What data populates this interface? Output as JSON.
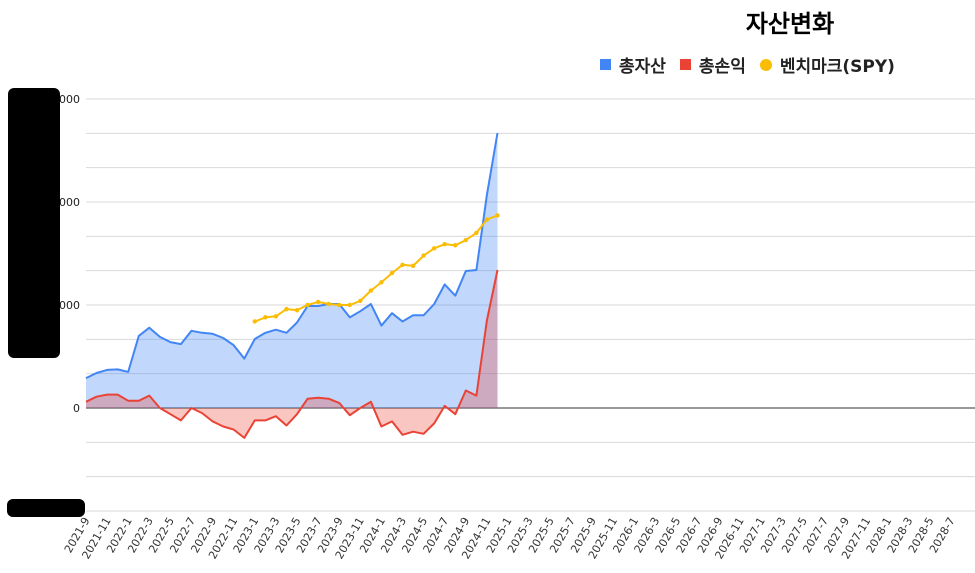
{
  "chart_data": {
    "type": "area",
    "title": "자산변화",
    "xlabel": "",
    "ylabel": "",
    "y_tick_labels": [
      "0",
      "0000",
      "0000",
      "0000"
    ],
    "y_tick_values": [
      0,
      10000,
      20000,
      30000
    ],
    "ylim": [
      -10000,
      30500
    ],
    "legend_position": "top-right",
    "grid": true,
    "x": [
      "2021-9",
      "2021-10",
      "2021-11",
      "2021-12",
      "2022-1",
      "2022-2",
      "2022-3",
      "2022-4",
      "2022-5",
      "2022-6",
      "2022-7",
      "2022-8",
      "2022-9",
      "2022-10",
      "2022-11",
      "2022-12",
      "2023-1",
      "2023-2",
      "2023-3",
      "2023-4",
      "2023-5",
      "2023-6",
      "2023-7",
      "2023-8",
      "2023-9",
      "2023-10",
      "2023-11",
      "2023-12",
      "2024-1",
      "2024-2",
      "2024-3",
      "2024-4",
      "2024-5",
      "2024-6",
      "2024-7",
      "2024-8",
      "2024-9",
      "2024-10",
      "2024-11",
      "2024-12",
      "2025-1",
      "2025-2",
      "2025-3",
      "2025-4",
      "2025-5",
      "2025-6",
      "2025-7",
      "2025-8",
      "2025-9",
      "2025-10",
      "2025-11",
      "2025-12",
      "2026-1",
      "2026-2",
      "2026-3",
      "2026-4",
      "2026-5",
      "2026-6",
      "2026-7",
      "2026-8",
      "2026-9",
      "2026-10",
      "2026-11",
      "2026-12",
      "2027-1",
      "2027-2",
      "2027-3",
      "2027-4",
      "2027-5",
      "2027-6",
      "2027-7",
      "2027-8",
      "2027-9",
      "2027-10",
      "2027-11",
      "2027-12",
      "2028-1",
      "2028-2",
      "2028-3",
      "2028-4",
      "2028-5",
      "2028-6",
      "2028-7"
    ],
    "x_tick_labels": [
      "2021-9",
      "2021-11",
      "2022-1",
      "2022-3",
      "2022-5",
      "2022-7",
      "2022-9",
      "2022-11",
      "2023-1",
      "2023-3",
      "2023-5",
      "2023-7",
      "2023-9",
      "2023-11",
      "2024-1",
      "2024-3",
      "2024-5",
      "2024-7",
      "2024-9",
      "2024-11",
      "2025-1",
      "2025-3",
      "2025-5",
      "2025-7",
      "2025-9",
      "2025-11",
      "2026-1",
      "2026-3",
      "2026-5",
      "2026-7",
      "2026-9",
      "2026-11",
      "2027-1",
      "2027-3",
      "2027-5",
      "2027-7",
      "2027-9",
      "2027-11",
      "2028-1",
      "2028-3",
      "2028-5",
      "2028-7"
    ],
    "series": [
      {
        "name": "총자산",
        "color": "#4285f4",
        "fill": "rgba(66,133,244,0.33)",
        "style": "area",
        "values": [
          2900,
          3400,
          3700,
          3750,
          3500,
          7000,
          7800,
          6900,
          6400,
          6200,
          7500,
          7300,
          7200,
          6800,
          6100,
          4800,
          6700,
          7300,
          7600,
          7300,
          8300,
          9900,
          9900,
          10100,
          10100,
          8800,
          9400,
          10100,
          8000,
          9200,
          8400,
          9000,
          9000,
          10100,
          12000,
          10900,
          13300,
          13400,
          20700,
          26700,
          null,
          null,
          null,
          null,
          null,
          null,
          null,
          null,
          null,
          null,
          null,
          null,
          null,
          null,
          null,
          null,
          null,
          null,
          null,
          null,
          null,
          null,
          null,
          null,
          null,
          null,
          null,
          null,
          null,
          null,
          null,
          null,
          null,
          null,
          null,
          null,
          null,
          null,
          null,
          null,
          null,
          null,
          null
        ]
      },
      {
        "name": "총손익",
        "color": "#ea4335",
        "fill": "rgba(234,67,53,0.30)",
        "style": "area",
        "values": [
          600,
          1100,
          1300,
          1300,
          700,
          700,
          1200,
          0,
          -600,
          -1200,
          0,
          -500,
          -1300,
          -1800,
          -2100,
          -2900,
          -1200,
          -1200,
          -800,
          -1700,
          -600,
          900,
          1000,
          900,
          500,
          -700,
          0,
          600,
          -1800,
          -1300,
          -2600,
          -2300,
          -2500,
          -1500,
          200,
          -600,
          1700,
          1200,
          8500,
          13400,
          null,
          null,
          null,
          null,
          null,
          null,
          null,
          null,
          null,
          null,
          null,
          null,
          null,
          null,
          null,
          null,
          null,
          null,
          null,
          null,
          null,
          null,
          null,
          null,
          null,
          null,
          null,
          null,
          null,
          null,
          null,
          null,
          null,
          null,
          null,
          null,
          null,
          null,
          null,
          null,
          null,
          null,
          null
        ]
      },
      {
        "name": "벤치마크(SPY)",
        "color": "#fbbc04",
        "style": "line-markers",
        "values": [
          null,
          null,
          null,
          null,
          null,
          null,
          null,
          null,
          null,
          null,
          null,
          null,
          null,
          null,
          null,
          null,
          8400,
          8800,
          8900,
          9600,
          9500,
          10000,
          10300,
          10100,
          10000,
          10000,
          10400,
          11400,
          12200,
          13100,
          13900,
          13800,
          14800,
          15500,
          15900,
          15800,
          16300,
          17000,
          18300,
          18700,
          null,
          null,
          null,
          null,
          null,
          null,
          null,
          null,
          null,
          null,
          null,
          null,
          null,
          null,
          null,
          null,
          null,
          null,
          null,
          null,
          null,
          null,
          null,
          null,
          null,
          null,
          null,
          null,
          null,
          null,
          null,
          null,
          null,
          null,
          null,
          null,
          null,
          null,
          null,
          null,
          null,
          null,
          null
        ]
      }
    ]
  }
}
